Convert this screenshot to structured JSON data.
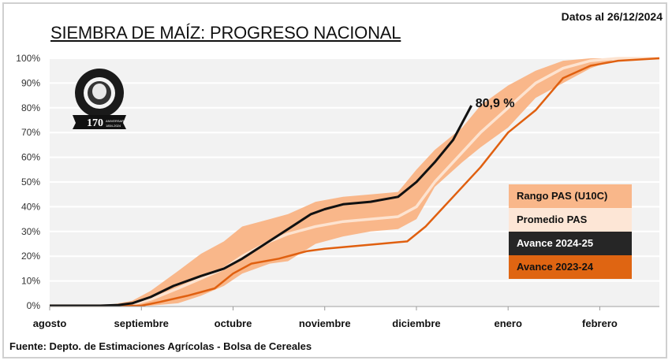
{
  "header": {
    "title": "SIEMBRA DE MAÍZ: PROGRESO NACIONAL",
    "date_label": "Datos al 26/12/2024"
  },
  "footer": {
    "source": "Fuente: Depto. de Estimaciones Agrícolas - Bolsa de Cereales"
  },
  "logo": {
    "name": "Bolsa de Cereales",
    "badge": "170",
    "badge_sub": "ANIVERSARIO 1854-2024"
  },
  "colors": {
    "range": "#f9b78a",
    "average": "#fde3d0",
    "current": "#111111",
    "previous": "#e06010",
    "plot_bg": "#f2f2f2",
    "grid": "#ffffff"
  },
  "chart_data": {
    "type": "line",
    "title": "SIEMBRA DE MAÍZ: PROGRESO NACIONAL",
    "xlabel": "",
    "ylabel": "",
    "x_unit": "months since start of agosto",
    "xlim": [
      0,
      6.65
    ],
    "ylim": [
      0,
      100
    ],
    "yticks": [
      "0%",
      "10%",
      "20%",
      "30%",
      "40%",
      "50%",
      "60%",
      "70%",
      "80%",
      "90%",
      "100%"
    ],
    "xticks": [
      {
        "label": "agosto",
        "x": 0
      },
      {
        "label": "septiembre",
        "x": 1
      },
      {
        "label": "octubre",
        "x": 2
      },
      {
        "label": "noviembre",
        "x": 3
      },
      {
        "label": "diciembre",
        "x": 4
      },
      {
        "label": "enero",
        "x": 5
      },
      {
        "label": "febrero",
        "x": 6
      }
    ],
    "grid": true,
    "legend_position": "right",
    "annotation": {
      "text": "80,9 %",
      "x": 4.6,
      "y": 80.9
    },
    "series": [
      {
        "name": "Rango PAS (U10C)",
        "kind": "band",
        "x": [
          0,
          0.6,
          0.9,
          1.1,
          1.4,
          1.65,
          1.9,
          2.1,
          2.4,
          2.6,
          2.9,
          3.2,
          3.5,
          3.8,
          4.0,
          4.2,
          4.5,
          4.7,
          5.0,
          5.3,
          5.6,
          5.9,
          6.2,
          6.65
        ],
        "lower": [
          0,
          0,
          0,
          0,
          1,
          4,
          8,
          13,
          17,
          18,
          25,
          28,
          30,
          31,
          35,
          48,
          58,
          64,
          72,
          84,
          90,
          96,
          100,
          100
        ],
        "upper": [
          0,
          0,
          2,
          6,
          14,
          21,
          26,
          32,
          35,
          37,
          42,
          44,
          45,
          46,
          55,
          63,
          72,
          81,
          89,
          95,
          99,
          100,
          100,
          100
        ]
      },
      {
        "name": "Promedio PAS",
        "kind": "line",
        "x": [
          0,
          0.6,
          0.9,
          1.1,
          1.4,
          1.65,
          1.9,
          2.1,
          2.4,
          2.6,
          2.9,
          3.2,
          3.5,
          3.8,
          4.0,
          4.2,
          4.5,
          4.7,
          5.0,
          5.3,
          5.6,
          5.9,
          6.2,
          6.65
        ],
        "values": [
          0,
          0,
          0.5,
          2.5,
          7,
          11,
          15,
          20,
          26,
          29,
          32,
          34,
          35,
          36,
          40,
          50,
          62,
          70,
          80,
          90,
          96,
          99,
          100,
          100
        ]
      },
      {
        "name": "Avance 2024-25",
        "kind": "line",
        "x": [
          0,
          0.55,
          0.75,
          0.9,
          1.1,
          1.35,
          1.65,
          1.9,
          2.1,
          2.35,
          2.6,
          2.85,
          3.0,
          3.2,
          3.5,
          3.8,
          4.0,
          4.2,
          4.4,
          4.6
        ],
        "values": [
          0,
          0,
          0.3,
          1,
          3.5,
          8,
          12,
          15,
          19,
          25,
          31,
          37,
          39,
          41,
          42,
          44,
          50,
          58,
          67,
          80.9
        ]
      },
      {
        "name": "Avance 2023-24",
        "kind": "line",
        "x": [
          0,
          0.85,
          1.0,
          1.2,
          1.5,
          1.8,
          2.0,
          2.2,
          2.5,
          2.8,
          3.0,
          3.3,
          3.6,
          3.9,
          4.1,
          4.4,
          4.7,
          5.0,
          5.3,
          5.6,
          5.9,
          6.2,
          6.65
        ],
        "values": [
          0,
          0,
          0,
          1.5,
          4,
          7,
          13,
          17,
          19,
          22,
          23,
          24,
          25,
          26,
          32,
          44,
          56,
          70,
          79,
          92,
          97,
          99,
          100
        ]
      }
    ]
  },
  "legend": [
    {
      "label": "Rango PAS (U10C)",
      "bg": "#f9b78a",
      "fg": "#111111"
    },
    {
      "label": "Promedio PAS",
      "bg": "#fde6d6",
      "fg": "#111111"
    },
    {
      "label": "Avance 2024-25",
      "bg": "#262626",
      "fg": "#ffffff"
    },
    {
      "label": "Avance 2023-24",
      "bg": "#df6512",
      "fg": "#111111"
    }
  ]
}
